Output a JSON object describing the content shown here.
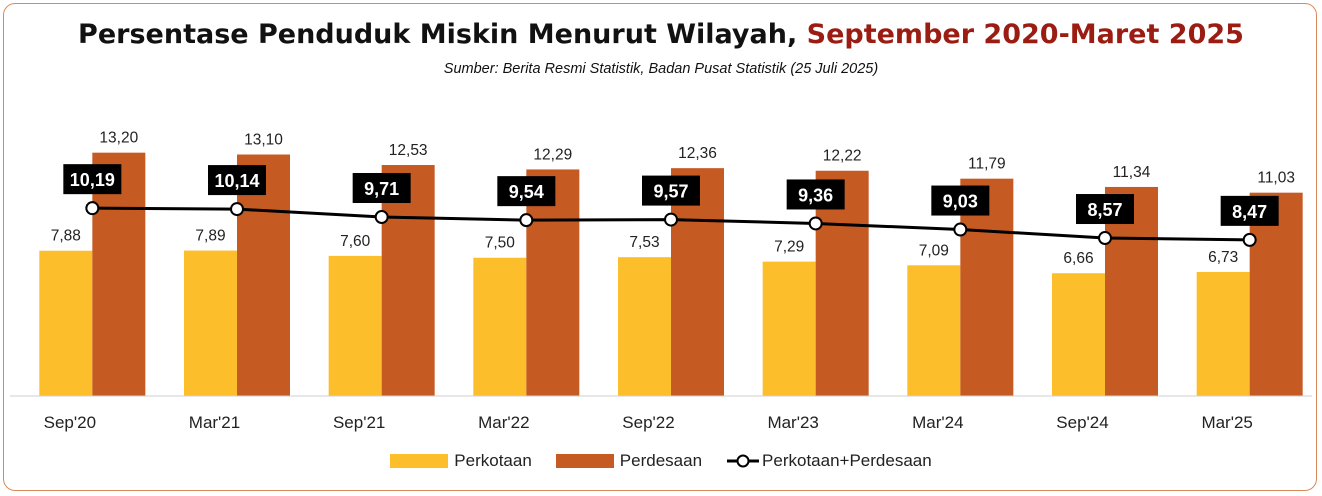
{
  "title": {
    "main": "Persentase Penduduk Miskin Menurut Wilayah, ",
    "highlight": "September 2020-Maret 2025"
  },
  "subtitle": "Sumber: Berita Resmi Statistik, Badan Pusat Statistik (25 Juli 2025)",
  "colors": {
    "perkotaan": "#fcbf2b",
    "perdesaan": "#c55a23",
    "total_line": "#000000",
    "title_highlight": "#9b1c12"
  },
  "chart_data": {
    "type": "bar",
    "categories": [
      "Sep'20",
      "Mar'21",
      "Sep'21",
      "Mar'22",
      "Sep'22",
      "Mar'23",
      "Mar'24",
      "Sep'24",
      "Mar'25"
    ],
    "ylim": [
      0,
      16.6
    ],
    "grid": false,
    "legend_position": "bottom",
    "series": [
      {
        "name": "Perkotaan",
        "kind": "bar",
        "values": [
          7.88,
          7.89,
          7.6,
          7.5,
          7.53,
          7.29,
          7.09,
          6.66,
          6.73
        ],
        "labels": [
          "7,88",
          "7,89",
          "7,60",
          "7,50",
          "7,53",
          "7,29",
          "7,09",
          "6,66",
          "6,73"
        ]
      },
      {
        "name": "Perdesaan",
        "kind": "bar",
        "values": [
          13.2,
          13.1,
          12.53,
          12.29,
          12.36,
          12.22,
          11.79,
          11.34,
          11.03
        ],
        "labels": [
          "13,20",
          "13,10",
          "12,53",
          "12,29",
          "12,36",
          "12,22",
          "11,79",
          "11,34",
          "11,03"
        ]
      },
      {
        "name": "Perkotaan+Perdesaan",
        "kind": "line",
        "values": [
          10.19,
          10.14,
          9.71,
          9.54,
          9.57,
          9.36,
          9.03,
          8.57,
          8.47
        ],
        "labels": [
          "10,19",
          "10,14",
          "9,71",
          "9,54",
          "9,57",
          "9,36",
          "9,03",
          "8,57",
          "8,47"
        ]
      }
    ]
  }
}
